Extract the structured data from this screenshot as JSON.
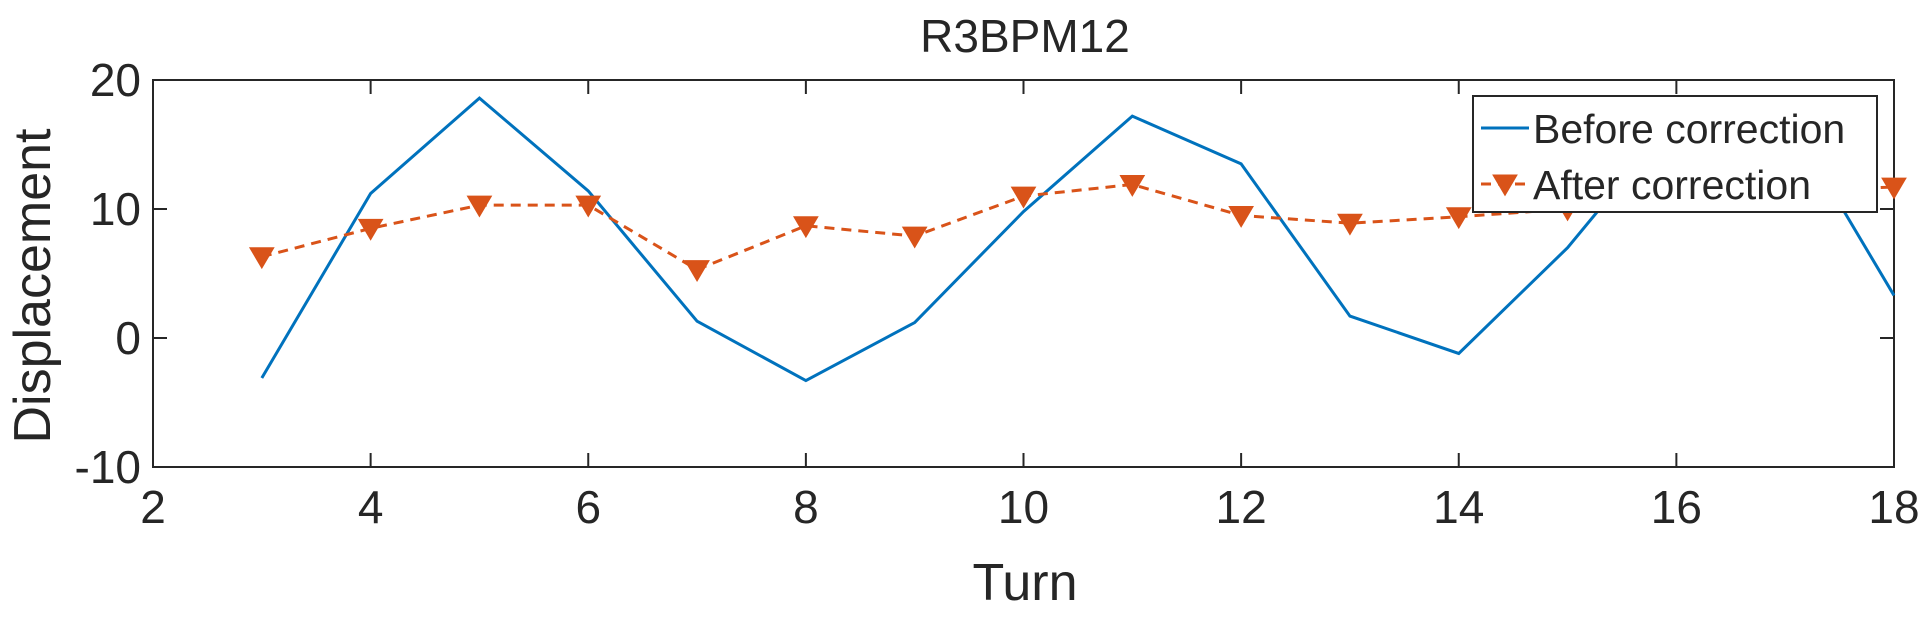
{
  "chart_data": {
    "type": "line",
    "title": "R3BPM12",
    "xlabel": "Turn",
    "ylabel": "Displacement",
    "xlim": [
      2,
      18
    ],
    "ylim": [
      -10,
      20
    ],
    "xticks": [
      2,
      4,
      6,
      8,
      10,
      12,
      14,
      16,
      18
    ],
    "yticks": [
      -10,
      0,
      10,
      20
    ],
    "grid": false,
    "legend_position": "top-right",
    "series": [
      {
        "name": "Before correction",
        "color": "#0072BD",
        "line_style": "solid",
        "marker": "none",
        "x": [
          3,
          4,
          5,
          6,
          7,
          8,
          9,
          10,
          11,
          12,
          13,
          14,
          15,
          16,
          17,
          18
        ],
        "y": [
          -3.1,
          11.2,
          18.6,
          11.4,
          1.3,
          -3.3,
          1.2,
          9.8,
          17.2,
          13.5,
          1.7,
          -1.2,
          7.0,
          17.2,
          17.5,
          3.3
        ]
      },
      {
        "name": "After correction",
        "color": "#D95319",
        "line_style": "dashed",
        "marker": "triangle-down",
        "x": [
          3,
          4,
          5,
          6,
          7,
          8,
          9,
          10,
          11,
          12,
          13,
          14,
          15,
          16,
          17,
          18
        ],
        "y": [
          6.3,
          8.5,
          10.3,
          10.3,
          5.3,
          8.7,
          7.9,
          11.0,
          11.9,
          9.5,
          8.9,
          9.4,
          10.0,
          11.4,
          11.4,
          11.7
        ]
      }
    ]
  }
}
